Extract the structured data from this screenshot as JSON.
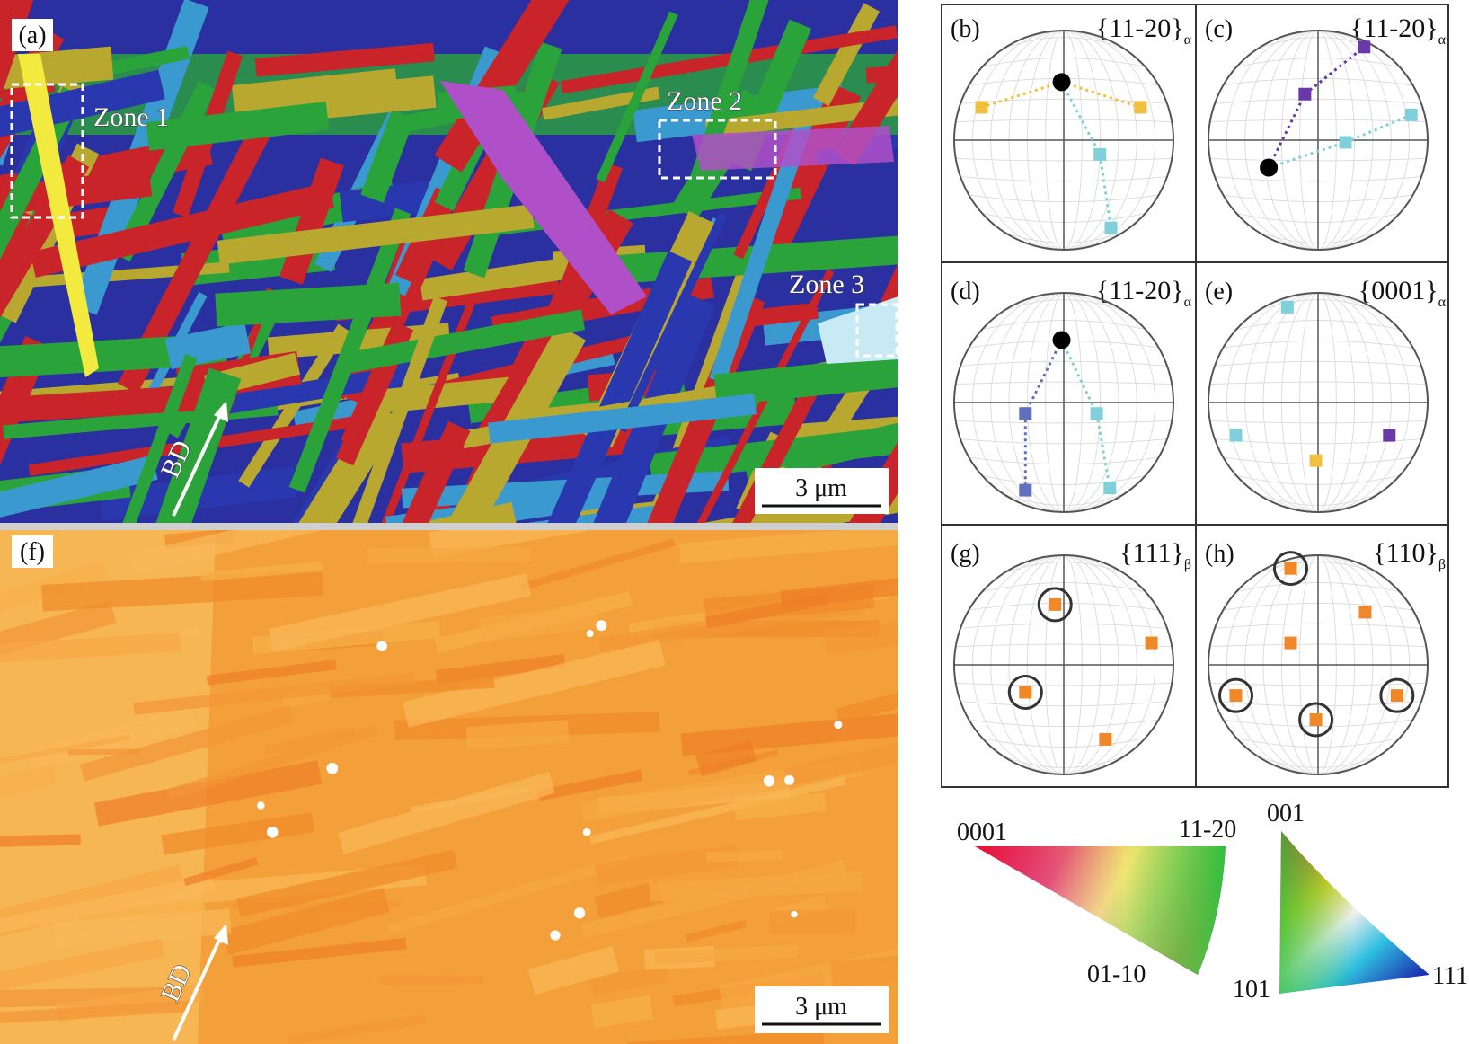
{
  "map_a": {
    "label": "(a)",
    "zones": [
      "Zone 1",
      "Zone 2",
      "Zone 3"
    ],
    "scale_bar": "3 μm",
    "direction": "BD"
  },
  "map_f": {
    "label": "(f)",
    "scale_bar": "3 μm",
    "direction": "BD"
  },
  "pole_figures": [
    {
      "label": "(b)",
      "plane": "{11-20}",
      "phase": "α"
    },
    {
      "label": "(c)",
      "plane": "{11-20}",
      "phase": "α"
    },
    {
      "label": "(d)",
      "plane": "{11-20}",
      "phase": "α"
    },
    {
      "label": "(e)",
      "plane": "{0001}",
      "phase": "α"
    },
    {
      "label": "(g)",
      "plane": "{111}",
      "phase": "β"
    },
    {
      "label": "(h)",
      "plane": "{110}",
      "phase": "β"
    }
  ],
  "ipf_hcp": {
    "corners": [
      "0001",
      "11-20",
      "01-10"
    ]
  },
  "ipf_cubic": {
    "corners": [
      "001",
      "101",
      "111"
    ]
  }
}
